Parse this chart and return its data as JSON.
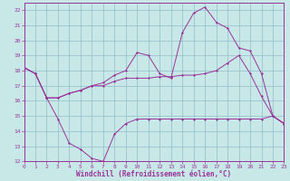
{
  "xlabel": "Windchill (Refroidissement éolien,°C)",
  "bg_color": "#c8e8e8",
  "grid_color": "#90bcc8",
  "line_color": "#993399",
  "xlim": [
    0,
    23
  ],
  "ylim": [
    12,
    22.5
  ],
  "xticks": [
    0,
    1,
    2,
    3,
    4,
    5,
    6,
    7,
    8,
    9,
    10,
    11,
    12,
    13,
    14,
    15,
    16,
    17,
    18,
    19,
    20,
    21,
    22,
    23
  ],
  "yticks": [
    12,
    13,
    14,
    15,
    16,
    17,
    18,
    19,
    20,
    21,
    22
  ],
  "line1_x": [
    0,
    1,
    2,
    3,
    4,
    5,
    6,
    7,
    8,
    9,
    10,
    11,
    12,
    13,
    14,
    15,
    16,
    17,
    18,
    19,
    20,
    21,
    22,
    23
  ],
  "line1_y": [
    18.2,
    17.8,
    16.2,
    14.8,
    13.2,
    12.8,
    12.2,
    12.0,
    13.8,
    14.5,
    14.8,
    14.8,
    14.8,
    14.8,
    14.8,
    14.8,
    14.8,
    14.8,
    14.8,
    14.8,
    14.8,
    14.8,
    15.0,
    14.5
  ],
  "line2_x": [
    0,
    1,
    2,
    3,
    4,
    5,
    6,
    7,
    8,
    9,
    10,
    11,
    12,
    13,
    14,
    15,
    16,
    17,
    18,
    19,
    20,
    21,
    22,
    23
  ],
  "line2_y": [
    18.2,
    17.8,
    16.2,
    16.2,
    16.5,
    16.7,
    17.0,
    17.0,
    17.3,
    17.5,
    17.5,
    17.5,
    17.6,
    17.6,
    17.7,
    17.7,
    17.8,
    18.0,
    18.5,
    19.0,
    17.8,
    16.3,
    15.0,
    14.5
  ],
  "line3_x": [
    0,
    1,
    2,
    3,
    4,
    5,
    6,
    7,
    8,
    9,
    10,
    11,
    12,
    13,
    14,
    15,
    16,
    17,
    18,
    19,
    20,
    21,
    22,
    23
  ],
  "line3_y": [
    18.2,
    17.8,
    16.2,
    16.2,
    16.5,
    16.7,
    17.0,
    17.2,
    17.7,
    18.0,
    19.2,
    19.0,
    17.8,
    17.5,
    20.5,
    21.8,
    22.2,
    21.2,
    20.8,
    19.5,
    19.3,
    17.8,
    15.0,
    14.5
  ]
}
